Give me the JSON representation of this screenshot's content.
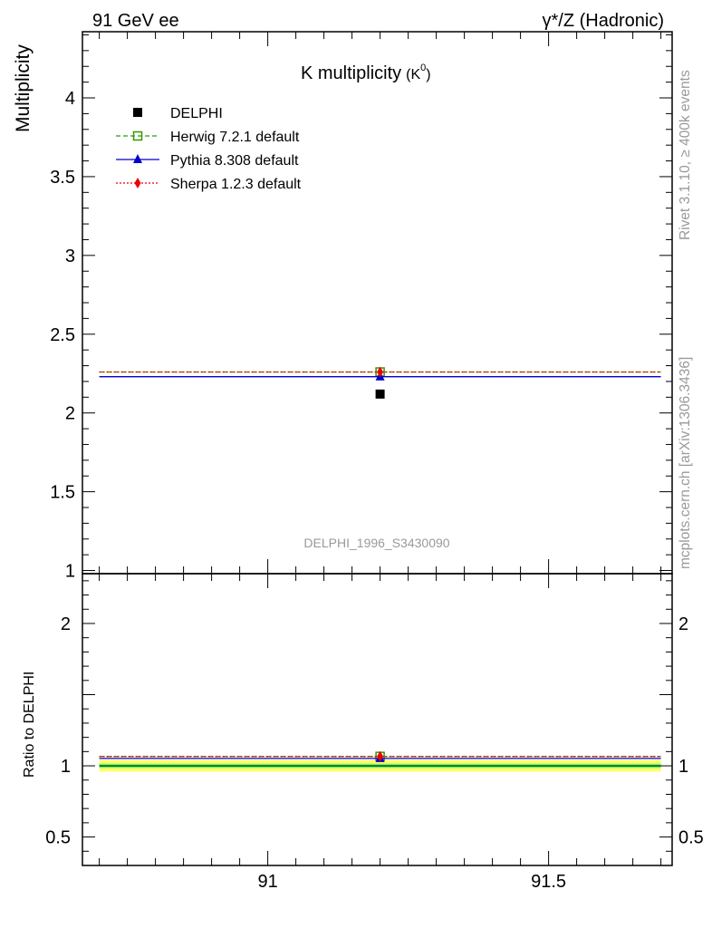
{
  "header": {
    "left": "91 GeV ee",
    "right": "γ*/Z (Hadronic)"
  },
  "side_text": {
    "rivet": "Rivet 3.1.10, ≥ 400k events",
    "mcplots": "mcplots.cern.ch [arXiv:1306.3436]"
  },
  "colors": {
    "delphi": "#000000",
    "herwig": "#339900",
    "pythia": "#0000cc",
    "sherpa": "#ee0000",
    "band_inner": "#66ff66",
    "band_outer": "#ffff66"
  },
  "chart_data": [
    {
      "type": "scatter",
      "title": "K multiplicity",
      "title_suffix": "(K",
      "title_sup": "0",
      "title_close": ")",
      "ylabel": "Multiplicity",
      "watermark": "DELPHI_1996_S3430090",
      "xlim": [
        90.67,
        91.72
      ],
      "ylim": [
        0.98,
        4.42
      ],
      "yticks": [
        "1",
        "1.5",
        "2",
        "2.5",
        "3",
        "3.5",
        "4"
      ],
      "ytick_values": [
        1,
        1.5,
        2,
        2.5,
        3,
        3.5,
        4
      ],
      "xbin": [
        90.7,
        91.7
      ],
      "x": 91.2,
      "legend_position": "top-left",
      "series": [
        {
          "name": "DELPHI",
          "key": "delphi",
          "y": 2.12,
          "marker": "square-filled",
          "style": "none"
        },
        {
          "name": "Herwig 7.2.1 default",
          "key": "herwig",
          "y": 2.26,
          "marker": "square-open",
          "style": "dashed"
        },
        {
          "name": "Pythia 8.308 default",
          "key": "pythia",
          "y": 2.23,
          "marker": "triangle",
          "style": "solid"
        },
        {
          "name": "Sherpa 1.2.3 default",
          "key": "sherpa",
          "y": 2.26,
          "marker": "diamond",
          "style": "dotted"
        }
      ]
    },
    {
      "type": "scatter",
      "ylabel": "Ratio to DELPHI",
      "xlim": [
        90.67,
        91.72
      ],
      "ylim": [
        0.3,
        2.35
      ],
      "yticks": [
        "0.5",
        "1",
        "2"
      ],
      "ytick_values": [
        0.5,
        1,
        2
      ],
      "xticks": [
        "91",
        "91.5"
      ],
      "xtick_values": [
        91,
        91.5
      ],
      "band_inner": [
        0.985,
        1.015
      ],
      "band_outer": [
        0.96,
        1.04
      ],
      "series": [
        {
          "name": "Herwig 7.2.1 default",
          "key": "herwig",
          "y": 1.066,
          "marker": "square-open",
          "style": "dashed"
        },
        {
          "name": "Pythia 8.308 default",
          "key": "pythia",
          "y": 1.052,
          "marker": "triangle",
          "style": "solid"
        },
        {
          "name": "Sherpa 1.2.3 default",
          "key": "sherpa",
          "y": 1.066,
          "marker": "diamond",
          "style": "dotted"
        }
      ]
    }
  ]
}
